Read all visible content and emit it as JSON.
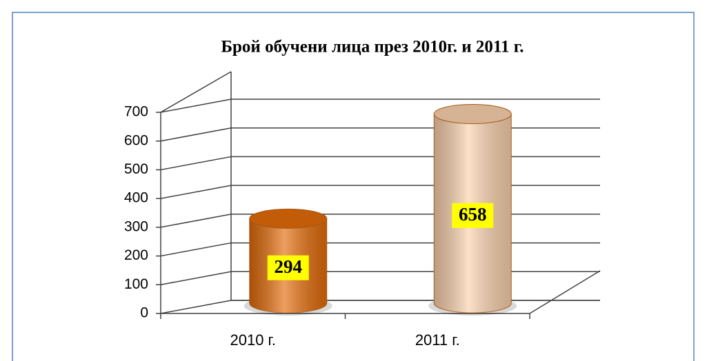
{
  "chart_data": {
    "type": "bar3d",
    "title": "Брой обучени лица през  2010г.  и 2011 г.",
    "categories": [
      "2010 г.",
      "2011 г."
    ],
    "values": [
      294,
      658
    ],
    "colors": [
      "#e46c0a",
      "#fbd2ae"
    ],
    "ylim": [
      0,
      700
    ],
    "yticks": [
      0,
      100,
      200,
      300,
      400,
      500,
      600,
      700
    ],
    "grid": true
  }
}
